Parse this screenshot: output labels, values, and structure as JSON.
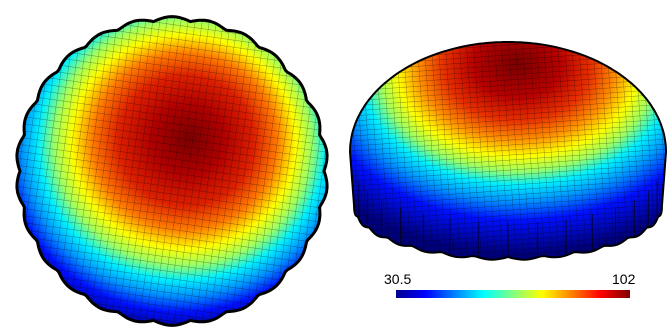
{
  "colorbar": {
    "min_label": "30.5",
    "max_label": "102",
    "min": 30.5,
    "max": 102,
    "colormap": "jet",
    "colors": [
      "#00008f",
      "#0000ff",
      "#0080ff",
      "#00ffff",
      "#80ff80",
      "#ffff00",
      "#ff8000",
      "#ff0000",
      "#800000"
    ]
  },
  "views": [
    {
      "name": "top-view",
      "description_hidden": true
    },
    {
      "name": "oblique-view",
      "description_hidden": true
    }
  ],
  "mesh": {
    "line_color": "#000000"
  }
}
